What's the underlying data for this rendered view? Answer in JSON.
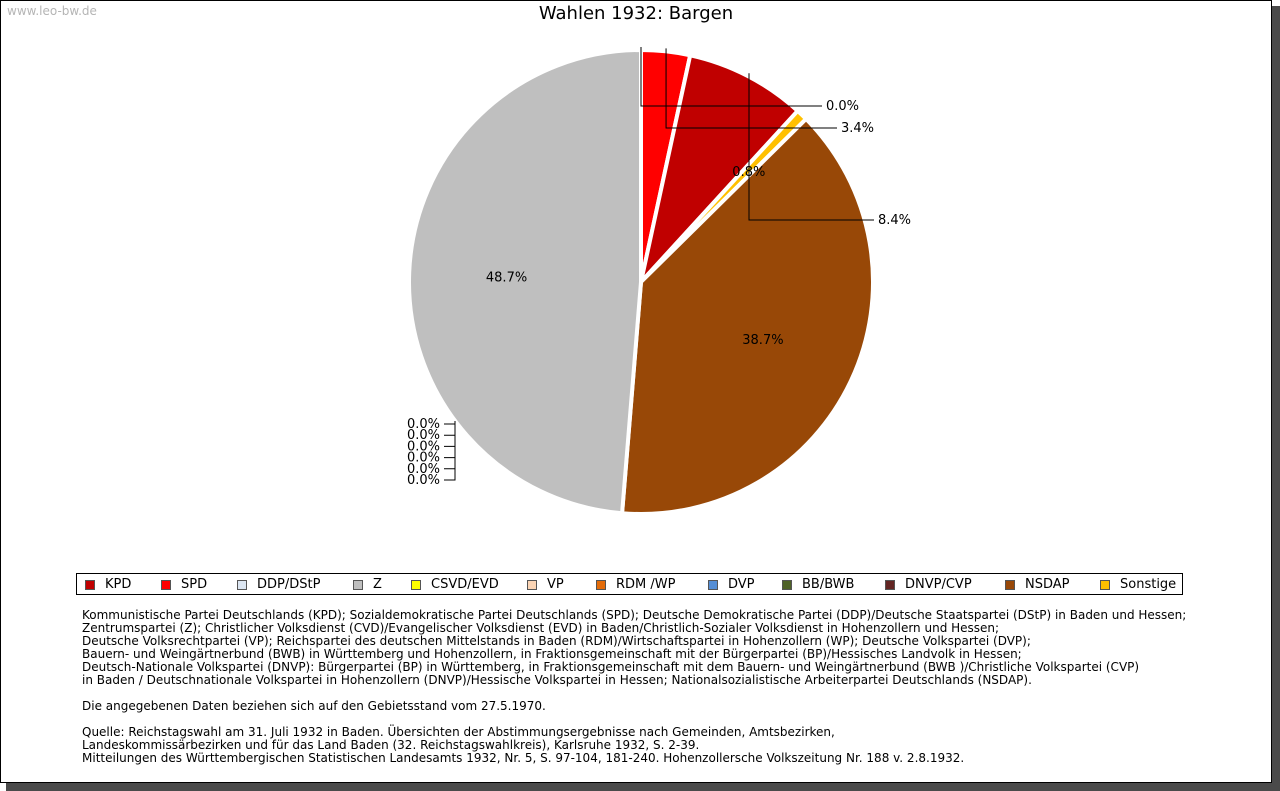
{
  "watermark": "www.leo-bw.de",
  "chart_data": {
    "type": "pie",
    "title": "Wahlen 1932: Bargen",
    "slices": [
      {
        "name": "KPD",
        "value": 8.4,
        "label": "8.4%",
        "color": "#c00000"
      },
      {
        "name": "SPD",
        "value": 3.4,
        "label": "3.4%",
        "color": "#ff0000"
      },
      {
        "name": "DDP/DStP",
        "value": 0.0,
        "label": "0.0%",
        "color": "#dce6f2"
      },
      {
        "name": "Z",
        "value": 48.7,
        "label": "48.7%",
        "color": "#bfbfbf"
      },
      {
        "name": "CSVD/EVD",
        "value": 0.0,
        "label": "0.0%",
        "color": "#ffff00"
      },
      {
        "name": "VP",
        "value": 0.0,
        "label": "0.0%",
        "color": "#fcd5b5"
      },
      {
        "name": "RDM /WP",
        "value": 0.0,
        "label": "0.0%",
        "color": "#e46c0a"
      },
      {
        "name": "DVP",
        "value": 0.0,
        "label": "0.0%",
        "color": "#558ed5"
      },
      {
        "name": "BB/BWB",
        "value": 0.0,
        "label": "0.0%",
        "color": "#4f6228"
      },
      {
        "name": "DNVP/CVP",
        "value": 0.0,
        "label": "0.0%",
        "color": "#632523"
      },
      {
        "name": "NSDAP",
        "value": 38.7,
        "label": "38.7%",
        "color": "#984807"
      },
      {
        "name": "Sonstige",
        "value": 0.8,
        "label": "0.8%",
        "color": "#ffc000"
      }
    ]
  },
  "notes": {
    "lines": [
      "Kommunistische Partei Deutschlands (KPD); Sozialdemokratische Partei Deutschlands (SPD); Deutsche Demokratische Partei (DDP)/Deutsche Staatspartei (DStP) in Baden und Hessen;",
      "Zentrumspartei (Z); Christlicher Volksdienst (CVD)/Evangelischer Volksdienst (EVD) in Baden/Christlich-Sozialer Volksdienst in Hohenzollern und Hessen;",
      "Deutsche Volksrechtpartei (VP); Reichspartei des deutschen Mittelstands in Baden (RDM)/Wirtschaftspartei in Hohenzollern (WP); Deutsche Volkspartei (DVP);",
      "Bauern- und Weingärtnerbund (BWB) in Württemberg und Hohenzollern, in Fraktionsgemeinschaft mit der Bürgerpartei (BP)/Hessisches Landvolk in Hessen;",
      "Deutsch-Nationale Volkspartei (DNVP): Bürgerpartei (BP) in Württemberg, in Fraktionsgemeinschaft mit dem Bauern- und Weingärtnerbund (BWB )/Christliche Volkspartei (CVP)",
      "in Baden / Deutschnationale Volkspartei in Hohenzollern (DNVP)/Hessische Volkspartei in Hessen; Nationalsozialistische Arbeiterpartei Deutschlands (NSDAP)."
    ],
    "stand": "Die angegebenen Daten beziehen sich auf den Gebietsstand vom 27.5.1970.",
    "source": [
      "Quelle: Reichstagswahl am 31. Juli 1932 in Baden. Übersichten der Abstimmungsergebnisse nach Gemeinden, Amtsbezirken,",
      "Landeskommissärbezirken und für das Land Baden (32. Reichstagswahlkreis), Karlsruhe 1932, S. 2-39.",
      "Mitteilungen des Württembergischen Statistischen Landesamts 1932, Nr. 5, S. 97-104, 181-240. Hohenzollersche Volkszeitung Nr. 188 v. 2.8.1932."
    ]
  }
}
